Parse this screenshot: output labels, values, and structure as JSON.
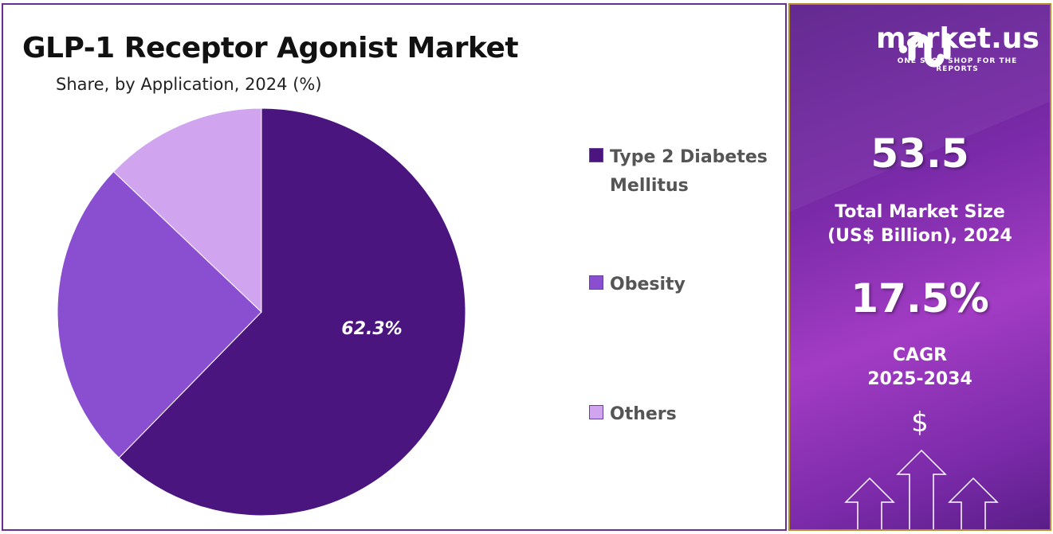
{
  "header": {
    "title": "GLP-1 Receptor Agonist Market",
    "subtitle": "Share, by Application, 2024 (%)"
  },
  "chart_data": {
    "type": "pie",
    "title": "GLP-1 Receptor Agonist Market",
    "subtitle": "Share, by Application, 2024 (%)",
    "categories": [
      "Type 2 Diabetes Mellitus",
      "Obesity",
      "Others"
    ],
    "values": [
      62.3,
      24.8,
      12.9
    ],
    "colors": [
      "#4b1580",
      "#8a4fd0",
      "#d0a4ee"
    ],
    "data_labels": [
      "62.3%",
      "",
      ""
    ],
    "start_angle": "top, clockwise",
    "legend_placement": "right"
  },
  "legend": [
    {
      "label": "Type 2 Diabetes Mellitus",
      "color": "#4b1580"
    },
    {
      "label": "Obesity",
      "color": "#8a4fd0"
    },
    {
      "label": "Others",
      "color": "#d0a4ee"
    }
  ],
  "sidebar": {
    "logo_text": "market.us",
    "logo_tagline": "ONE STOP SHOP FOR THE REPORTS",
    "market_size": "53.5",
    "market_size_caption_1": "Total Market Size",
    "market_size_caption_2": "(US$ Billion), 2024",
    "cagr": "17.5%",
    "cagr_caption_1": "CAGR",
    "cagr_caption_2": "2025-2034",
    "dollar_symbol": "$",
    "icons": [
      "market-us-logo-icon",
      "dollar-icon",
      "up-arrow-icon"
    ]
  }
}
